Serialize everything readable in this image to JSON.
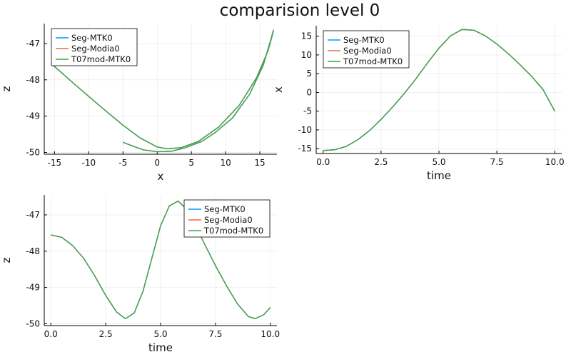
{
  "title": "comparision level 0",
  "colors": {
    "Seg-MTK0": "#009AFA",
    "Seg-Modia0": "#E36F47",
    "T07mod-MTK0": "#3EA44E"
  },
  "chart_data": [
    {
      "type": "line",
      "title": "",
      "xlabel": "x",
      "ylabel": "z",
      "xlim": [
        -16.5,
        17.5
      ],
      "ylim": [
        -50.05,
        -46.45
      ],
      "xticks": [
        -15,
        -10,
        -5,
        0,
        5,
        10,
        15
      ],
      "yticks": [
        -50,
        -49,
        -48,
        -47
      ],
      "grid": true,
      "legend": "top-left",
      "series": [
        {
          "name": "Seg-MTK0",
          "points": [
            [
              -15.5,
              -47.55
            ],
            [
              -12.2,
              -48.1
            ],
            [
              -8.5,
              -48.7
            ],
            [
              -5.0,
              -49.25
            ],
            [
              -2.5,
              -49.6
            ],
            [
              0.0,
              -49.85
            ],
            [
              1.5,
              -49.9
            ],
            [
              3.5,
              -49.87
            ],
            [
              6.0,
              -49.7
            ],
            [
              9.0,
              -49.3
            ],
            [
              12.0,
              -48.7
            ],
            [
              14.5,
              -47.95
            ],
            [
              16.2,
              -47.2
            ],
            [
              16.9,
              -46.72
            ],
            [
              17.0,
              -46.63
            ],
            [
              16.6,
              -46.9
            ],
            [
              15.5,
              -47.6
            ],
            [
              13.5,
              -48.4
            ],
            [
              11.0,
              -49.05
            ],
            [
              8.5,
              -49.45
            ],
            [
              6.5,
              -49.7
            ],
            [
              4.0,
              -49.88
            ],
            [
              2.0,
              -49.97
            ],
            [
              0.0,
              -49.98
            ],
            [
              -2.0,
              -49.93
            ],
            [
              -3.5,
              -49.83
            ],
            [
              -5.0,
              -49.72
            ]
          ]
        },
        {
          "name": "Seg-Modia0",
          "points": [
            [
              -15.5,
              -47.55
            ],
            [
              -12.2,
              -48.1
            ],
            [
              -8.5,
              -48.7
            ],
            [
              -5.0,
              -49.25
            ],
            [
              -2.5,
              -49.6
            ],
            [
              0.0,
              -49.85
            ],
            [
              1.5,
              -49.9
            ],
            [
              3.5,
              -49.87
            ],
            [
              6.0,
              -49.7
            ],
            [
              9.0,
              -49.3
            ],
            [
              12.0,
              -48.7
            ],
            [
              14.5,
              -47.95
            ],
            [
              16.2,
              -47.2
            ],
            [
              16.9,
              -46.72
            ],
            [
              17.0,
              -46.63
            ],
            [
              16.6,
              -46.9
            ],
            [
              15.5,
              -47.6
            ],
            [
              13.5,
              -48.4
            ],
            [
              11.0,
              -49.05
            ],
            [
              8.5,
              -49.45
            ],
            [
              6.5,
              -49.7
            ],
            [
              4.0,
              -49.88
            ],
            [
              2.0,
              -49.97
            ],
            [
              0.0,
              -49.98
            ],
            [
              -2.0,
              -49.93
            ],
            [
              -3.5,
              -49.83
            ],
            [
              -5.0,
              -49.72
            ]
          ]
        },
        {
          "name": "T07mod-MTK0",
          "points": [
            [
              -15.5,
              -47.55
            ],
            [
              -12.2,
              -48.1
            ],
            [
              -8.5,
              -48.7
            ],
            [
              -5.0,
              -49.25
            ],
            [
              -2.5,
              -49.6
            ],
            [
              0.0,
              -49.85
            ],
            [
              1.5,
              -49.9
            ],
            [
              3.5,
              -49.87
            ],
            [
              6.0,
              -49.7
            ],
            [
              9.0,
              -49.3
            ],
            [
              12.0,
              -48.7
            ],
            [
              14.5,
              -47.95
            ],
            [
              16.2,
              -47.2
            ],
            [
              16.9,
              -46.72
            ],
            [
              17.0,
              -46.63
            ],
            [
              16.6,
              -46.9
            ],
            [
              15.5,
              -47.6
            ],
            [
              13.5,
              -48.4
            ],
            [
              11.0,
              -49.05
            ],
            [
              8.5,
              -49.45
            ],
            [
              6.5,
              -49.7
            ],
            [
              4.0,
              -49.88
            ],
            [
              2.0,
              -49.97
            ],
            [
              0.0,
              -49.98
            ],
            [
              -2.0,
              -49.93
            ],
            [
              -3.5,
              -49.83
            ],
            [
              -5.0,
              -49.72
            ]
          ]
        }
      ]
    },
    {
      "type": "line",
      "title": "",
      "xlabel": "time",
      "ylabel": "x",
      "xlim": [
        -0.3,
        10.3
      ],
      "ylim": [
        -16.3,
        17.8
      ],
      "xticks": [
        0.0,
        2.5,
        5.0,
        7.5,
        10.0
      ],
      "yticks": [
        -15,
        -10,
        -5,
        0,
        5,
        10,
        15
      ],
      "grid": true,
      "legend": "top-left",
      "series": [
        {
          "name": "Seg-MTK0",
          "points": [
            [
              0,
              -15.5
            ],
            [
              0.5,
              -15.3
            ],
            [
              1,
              -14.4
            ],
            [
              1.5,
              -12.6
            ],
            [
              2,
              -10.2
            ],
            [
              2.5,
              -7.2
            ],
            [
              3,
              -3.9
            ],
            [
              3.5,
              -0.3
            ],
            [
              4,
              3.6
            ],
            [
              4.5,
              7.8
            ],
            [
              5,
              11.8
            ],
            [
              5.5,
              15.1
            ],
            [
              6,
              16.8
            ],
            [
              6.5,
              16.6
            ],
            [
              7,
              15.1
            ],
            [
              7.5,
              12.9
            ],
            [
              8,
              10.3
            ],
            [
              8.5,
              7.4
            ],
            [
              9,
              4.3
            ],
            [
              9.5,
              0.7
            ],
            [
              10,
              -5.0
            ]
          ]
        },
        {
          "name": "Seg-Modia0",
          "points": [
            [
              0,
              -15.5
            ],
            [
              0.5,
              -15.3
            ],
            [
              1,
              -14.4
            ],
            [
              1.5,
              -12.6
            ],
            [
              2,
              -10.2
            ],
            [
              2.5,
              -7.2
            ],
            [
              3,
              -3.9
            ],
            [
              3.5,
              -0.3
            ],
            [
              4,
              3.6
            ],
            [
              4.5,
              7.8
            ],
            [
              5,
              11.8
            ],
            [
              5.5,
              15.1
            ],
            [
              6,
              16.8
            ],
            [
              6.5,
              16.6
            ],
            [
              7,
              15.1
            ],
            [
              7.5,
              12.9
            ],
            [
              8,
              10.3
            ],
            [
              8.5,
              7.4
            ],
            [
              9,
              4.3
            ],
            [
              9.5,
              0.7
            ],
            [
              10,
              -5.0
            ]
          ]
        },
        {
          "name": "T07mod-MTK0",
          "points": [
            [
              0,
              -15.5
            ],
            [
              0.5,
              -15.3
            ],
            [
              1,
              -14.4
            ],
            [
              1.5,
              -12.6
            ],
            [
              2,
              -10.2
            ],
            [
              2.5,
              -7.2
            ],
            [
              3,
              -3.9
            ],
            [
              3.5,
              -0.3
            ],
            [
              4,
              3.6
            ],
            [
              4.5,
              7.8
            ],
            [
              5,
              11.8
            ],
            [
              5.5,
              15.1
            ],
            [
              6,
              16.8
            ],
            [
              6.5,
              16.6
            ],
            [
              7,
              15.1
            ],
            [
              7.5,
              12.9
            ],
            [
              8,
              10.3
            ],
            [
              8.5,
              7.4
            ],
            [
              9,
              4.3
            ],
            [
              9.5,
              0.7
            ],
            [
              10,
              -5.0
            ]
          ]
        }
      ]
    },
    {
      "type": "line",
      "title": "",
      "xlabel": "time",
      "ylabel": "z",
      "xlim": [
        -0.3,
        10.3
      ],
      "ylim": [
        -50.05,
        -46.45
      ],
      "xticks": [
        0.0,
        2.5,
        5.0,
        7.5,
        10.0
      ],
      "yticks": [
        -50,
        -49,
        -48,
        -47
      ],
      "grid": true,
      "legend": "top-right",
      "series": [
        {
          "name": "Seg-MTK0",
          "points": [
            [
              0,
              -47.55
            ],
            [
              0.5,
              -47.62
            ],
            [
              1,
              -47.85
            ],
            [
              1.5,
              -48.2
            ],
            [
              2,
              -48.68
            ],
            [
              2.5,
              -49.22
            ],
            [
              3,
              -49.68
            ],
            [
              3.4,
              -49.86
            ],
            [
              3.8,
              -49.7
            ],
            [
              4.2,
              -49.1
            ],
            [
              4.6,
              -48.2
            ],
            [
              5.0,
              -47.3
            ],
            [
              5.4,
              -46.75
            ],
            [
              5.8,
              -46.62
            ],
            [
              6.2,
              -46.85
            ],
            [
              6.6,
              -47.3
            ],
            [
              7.0,
              -47.8
            ],
            [
              7.5,
              -48.4
            ],
            [
              8.0,
              -48.95
            ],
            [
              8.5,
              -49.45
            ],
            [
              9.0,
              -49.8
            ],
            [
              9.3,
              -49.86
            ],
            [
              9.7,
              -49.75
            ],
            [
              10.0,
              -49.55
            ]
          ]
        },
        {
          "name": "Seg-Modia0",
          "points": [
            [
              0,
              -47.55
            ],
            [
              0.5,
              -47.62
            ],
            [
              1,
              -47.85
            ],
            [
              1.5,
              -48.2
            ],
            [
              2,
              -48.68
            ],
            [
              2.5,
              -49.22
            ],
            [
              3,
              -49.68
            ],
            [
              3.4,
              -49.86
            ],
            [
              3.8,
              -49.7
            ],
            [
              4.2,
              -49.1
            ],
            [
              4.6,
              -48.2
            ],
            [
              5.0,
              -47.3
            ],
            [
              5.4,
              -46.75
            ],
            [
              5.8,
              -46.62
            ],
            [
              6.2,
              -46.85
            ],
            [
              6.6,
              -47.3
            ],
            [
              7.0,
              -47.8
            ],
            [
              7.5,
              -48.4
            ],
            [
              8.0,
              -48.95
            ],
            [
              8.5,
              -49.45
            ],
            [
              9.0,
              -49.8
            ],
            [
              9.3,
              -49.86
            ],
            [
              9.7,
              -49.75
            ],
            [
              10.0,
              -49.55
            ]
          ]
        },
        {
          "name": "T07mod-MTK0",
          "points": [
            [
              0,
              -47.55
            ],
            [
              0.5,
              -47.62
            ],
            [
              1,
              -47.85
            ],
            [
              1.5,
              -48.2
            ],
            [
              2,
              -48.68
            ],
            [
              2.5,
              -49.22
            ],
            [
              3,
              -49.68
            ],
            [
              3.4,
              -49.86
            ],
            [
              3.8,
              -49.7
            ],
            [
              4.2,
              -49.1
            ],
            [
              4.6,
              -48.2
            ],
            [
              5.0,
              -47.3
            ],
            [
              5.4,
              -46.75
            ],
            [
              5.8,
              -46.62
            ],
            [
              6.2,
              -46.85
            ],
            [
              6.6,
              -47.3
            ],
            [
              7.0,
              -47.8
            ],
            [
              7.5,
              -48.4
            ],
            [
              8.0,
              -48.95
            ],
            [
              8.5,
              -49.45
            ],
            [
              9.0,
              -49.8
            ],
            [
              9.3,
              -49.86
            ],
            [
              9.7,
              -49.75
            ],
            [
              10.0,
              -49.55
            ]
          ]
        }
      ]
    }
  ]
}
